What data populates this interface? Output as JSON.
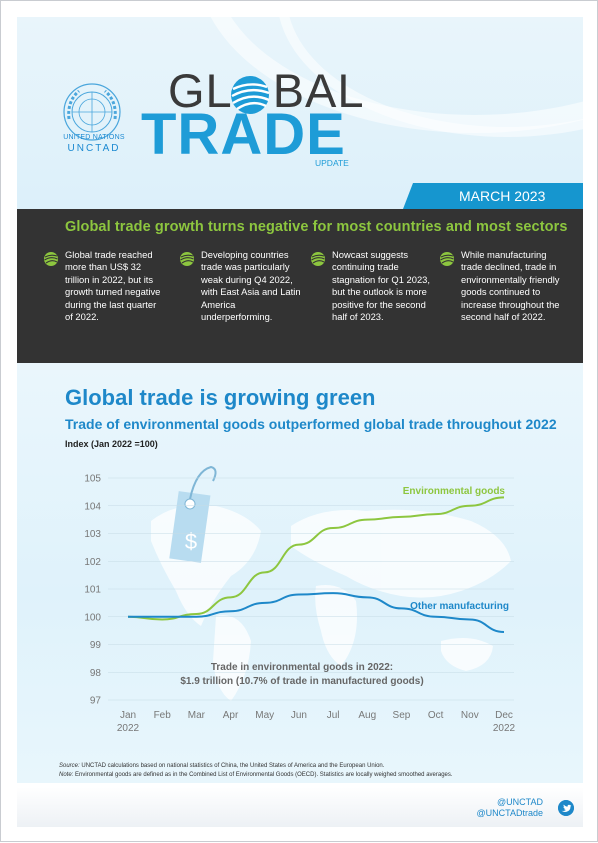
{
  "header": {
    "un_label": "UNITED NATIONS",
    "unctad_label": "UNCTAD",
    "title_part1": "GL",
    "title_part2": "BAL",
    "title_trade": "TRADE",
    "title_update": "UPDATE",
    "date": "MARCH 2023"
  },
  "highlights": {
    "title": "Global trade growth turns negative for most countries and most sectors",
    "points": [
      {
        "text": "Global trade reached more than US$ 32 trillion in 2022, but its growth turned negative during the last quarter of 2022."
      },
      {
        "text": "Developing countries trade was particularly weak during Q4 2022, with East Asia and Latin America underperforming."
      },
      {
        "text": "Nowcast suggests continuing trade stagnation for Q1 2023, but the outlook is more positive for the second half of 2023."
      },
      {
        "text": "While manufacturing trade declined, trade in environmentally friendly goods continued to increase throughout the second half of 2022."
      }
    ]
  },
  "chart_data": {
    "type": "line",
    "title": "Global trade is growing green",
    "subtitle": "Trade of environmental goods outperformed global trade throughout 2022",
    "ylabel": "Index (Jan 2022 =100)",
    "xlabel": "",
    "categories": [
      "Jan",
      "Feb",
      "Mar",
      "Apr",
      "May",
      "Jun",
      "Jul",
      "Aug",
      "Sep",
      "Oct",
      "Nov",
      "Dec"
    ],
    "x_year_labels": {
      "first": "2022",
      "last": "2022"
    },
    "ylim": [
      97,
      105
    ],
    "yticks": [
      97,
      98,
      99,
      100,
      101,
      102,
      103,
      104,
      105
    ],
    "grid": "horizontal",
    "series": [
      {
        "name": "Environmental goods",
        "color": "#8dc63f",
        "values": [
          100.0,
          99.9,
          100.1,
          100.7,
          101.6,
          102.6,
          103.2,
          103.5,
          103.6,
          103.7,
          104.0,
          104.3
        ]
      },
      {
        "name": "Other manufacturing",
        "color": "#1e88c9",
        "values": [
          100.0,
          100.0,
          100.0,
          100.2,
          100.5,
          100.8,
          100.85,
          100.7,
          100.3,
          100.0,
          99.9,
          99.45
        ]
      }
    ],
    "annotation": {
      "line1": "Trade in environmental goods in 2022:",
      "line2": "$1.9 trillion (10.7% of trade in manufactured goods)"
    },
    "tag_symbol": "$"
  },
  "notes": {
    "source_label": "Source:",
    "source_text": " UNCTAD calculations based on national statistics of China, the United States of America and the European Union.",
    "note_label": "Note:",
    "note_text": " Environmental goods are defined as in the Combined List of Environmental Goods (OECD). Statistics are locally weighed smoothed averages."
  },
  "footer": {
    "handle1": "@UNCTAD",
    "handle2": "@UNCTADtrade",
    "icon": "twitter-icon"
  }
}
